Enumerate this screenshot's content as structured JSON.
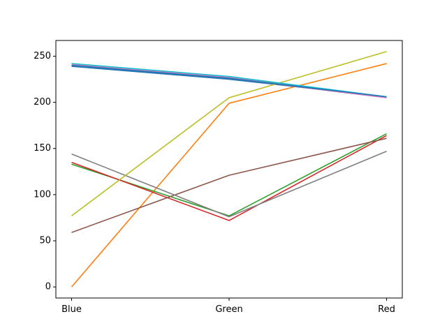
{
  "chart_data": {
    "type": "line",
    "categories": [
      "Blue",
      "Green",
      "Red"
    ],
    "ylim": [
      -12,
      267
    ],
    "yticks": [
      0,
      50,
      100,
      150,
      200,
      250
    ],
    "grid": false,
    "series": [
      {
        "color": "#1f77b4",
        "values": [
          239,
          225,
          206
        ]
      },
      {
        "color": "#ff7f0e",
        "values": [
          0,
          199,
          242
        ]
      },
      {
        "color": "#2ca02c",
        "values": [
          133,
          77,
          166
        ]
      },
      {
        "color": "#d62728",
        "values": [
          135,
          72,
          164
        ]
      },
      {
        "color": "#9467bd",
        "values": [
          240,
          226,
          205
        ]
      },
      {
        "color": "#8c564b",
        "values": [
          59,
          121,
          161
        ]
      },
      {
        "color": "#e377c2",
        "values": [
          241,
          227,
          205
        ]
      },
      {
        "color": "#7f7f7f",
        "values": [
          144,
          76,
          147
        ]
      },
      {
        "color": "#bcbd22",
        "values": [
          77,
          205,
          255
        ]
      },
      {
        "color": "#17becf",
        "values": [
          242,
          228,
          206
        ]
      },
      {
        "color": "#1f77b4",
        "values": [
          240,
          226,
          206
        ]
      }
    ]
  }
}
